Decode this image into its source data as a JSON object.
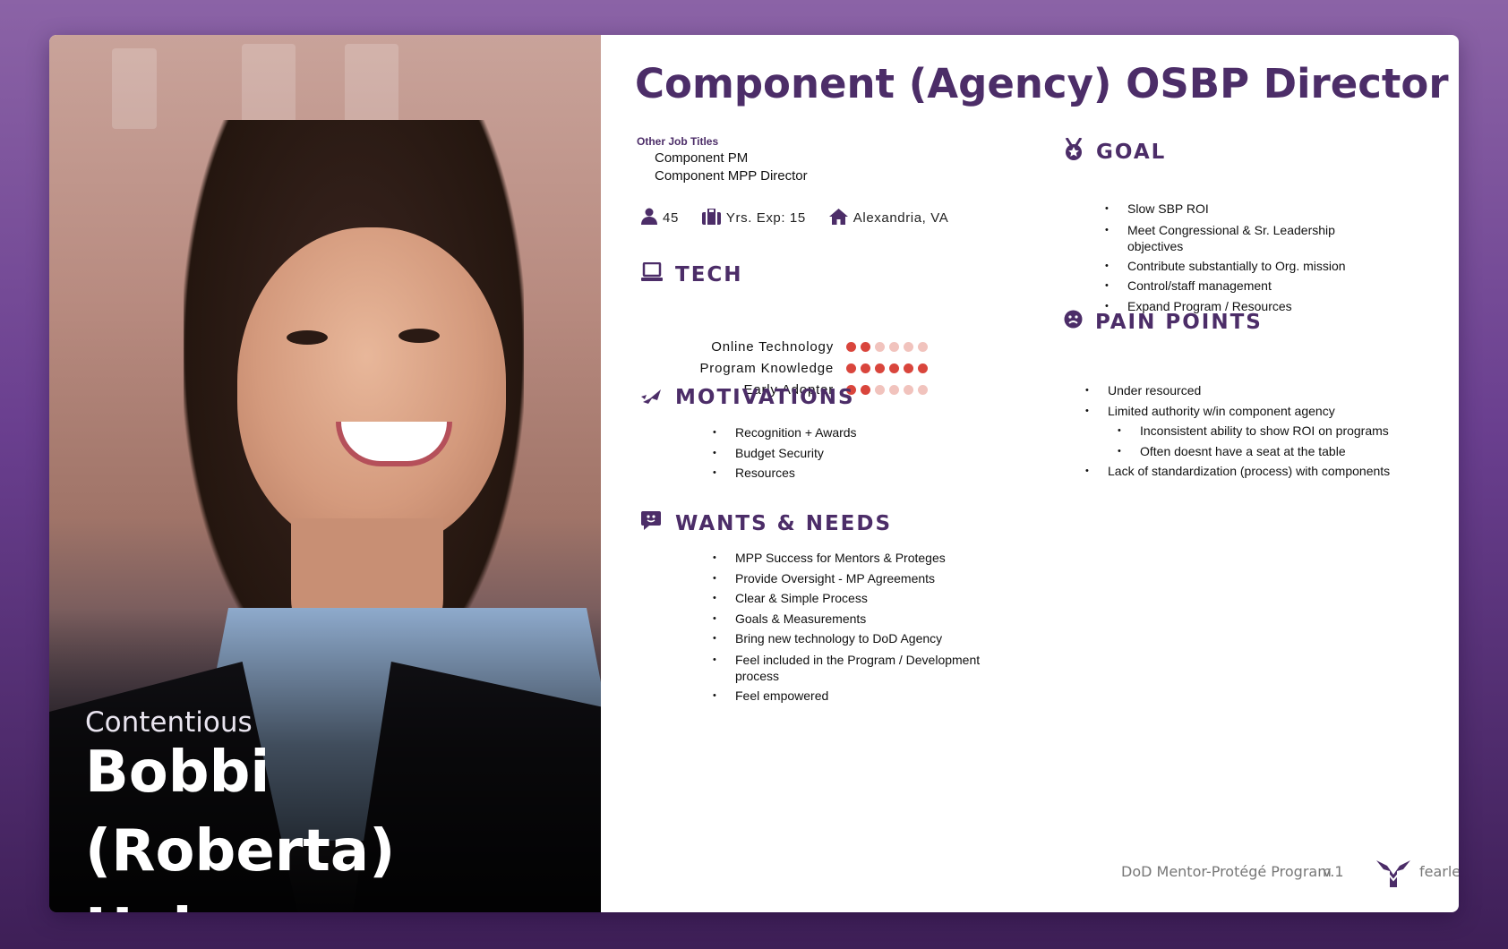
{
  "persona": {
    "subtitle": "Contentious",
    "name": "Bobbi (Roberta) Holmes"
  },
  "role_title": "Component (Agency) OSBP Director",
  "other_titles": {
    "heading": "Other Job Titles",
    "items": [
      "Component PM",
      "Component MPP Director"
    ]
  },
  "stats": {
    "age": "45",
    "experience": "Yrs. Exp: 15",
    "location": "Alexandria, VA"
  },
  "tech": {
    "heading": "TECH",
    "max": 6,
    "items": [
      {
        "label": "Online Technology",
        "level": 2
      },
      {
        "label": "Program Knowledge",
        "level": 6
      },
      {
        "label": "Early Adopter",
        "level": 2
      }
    ]
  },
  "motivations": {
    "heading": "MOTIVATIONS",
    "items": [
      "Recognition + Awards",
      "Budget Security",
      "Resources"
    ]
  },
  "wants": {
    "heading": "WANTS & NEEDS",
    "items": [
      "MPP Success for Mentors & Proteges",
      "Provide Oversight - MP Agreements",
      "Clear & Simple Process",
      "Goals & Measurements",
      "Bring new technology to DoD Agency",
      "Feel included in the Program / Development process",
      "Feel empowered"
    ]
  },
  "goal": {
    "heading": "GOAL",
    "items": [
      "Slow SBP ROI",
      "Meet Congressional & Sr. Leadership objectives",
      "Contribute substantially to Org. mission",
      "Control/staff management",
      "Expand Program / Resources"
    ]
  },
  "pain_points": {
    "heading": "PAIN POINTS",
    "items": [
      "Under resourced",
      "Limited authority w/in component agency",
      "Inconsistent ability to show ROI on programs",
      "Often doesnt have a seat at the table",
      "Lack of standardization (process) with components"
    ]
  },
  "footer": {
    "program": "DoD Mentor-Protégé Program",
    "version": "v.1",
    "brand": "fearless.tech"
  },
  "colors": {
    "accent": "#4c2d68",
    "dot_on": "#d9453c",
    "dot_off": "#f1c3bd"
  }
}
